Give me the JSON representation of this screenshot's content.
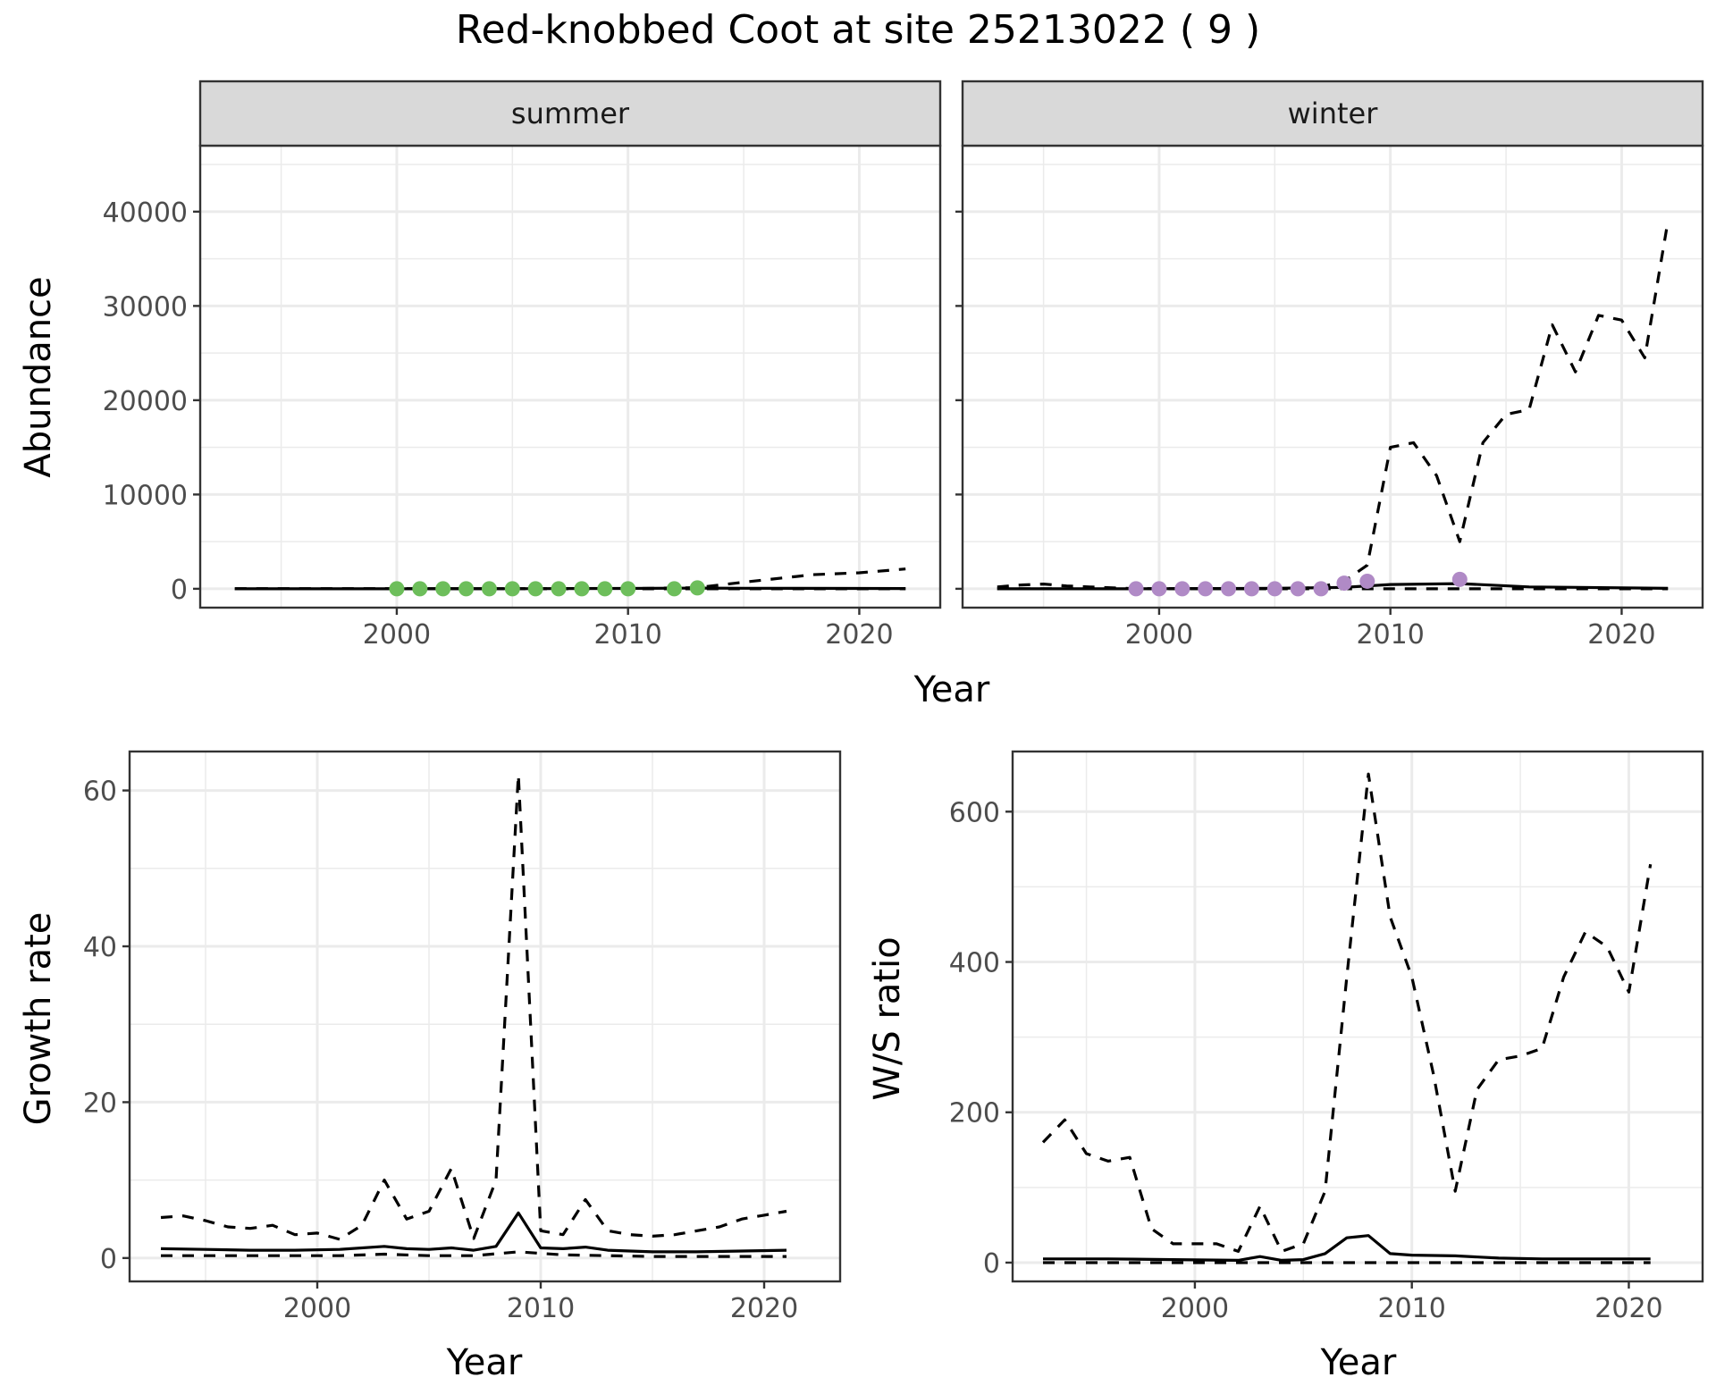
{
  "title": "Red-knobbed Coot at site 25213022 ( 9 )",
  "colors": {
    "summer_points": "#6DBE5B",
    "winter_points": "#B08AC6",
    "strip_bg": "#D9D9D9",
    "grid": "#EBEBEB",
    "line": "#000000"
  },
  "chart_data": [
    {
      "type": "line",
      "facet": "summer",
      "xlabel": "Year",
      "ylabel": "Abundance",
      "xlim": [
        1991.5,
        2023.5
      ],
      "ylim": [
        -2000,
        47000
      ],
      "x_ticks": [
        2000,
        2010,
        2020
      ],
      "y_ticks": [
        0,
        10000,
        20000,
        30000,
        40000
      ],
      "grid": true,
      "series": [
        {
          "style": "solid",
          "x": [
            1993,
            2000,
            2005,
            2010,
            2013,
            2015,
            2020,
            2022
          ],
          "values": [
            0,
            0,
            10,
            40,
            80,
            60,
            40,
            30
          ]
        },
        {
          "style": "dashed",
          "x": [
            1993,
            2000,
            2005,
            2010,
            2013,
            2015,
            2018,
            2020,
            2022
          ],
          "values": [
            0,
            0,
            0,
            20,
            120,
            700,
            1500,
            1700,
            2100
          ]
        },
        {
          "style": "dashed",
          "x": [
            1993,
            2000,
            2010,
            2022
          ],
          "values": [
            0,
            0,
            0,
            0
          ]
        },
        {
          "style": "points",
          "x": [
            2000,
            2001,
            2002,
            2003,
            2004,
            2005,
            2006,
            2007,
            2008,
            2009,
            2010,
            2012,
            2013
          ],
          "values": [
            0,
            0,
            0,
            0,
            0,
            0,
            0,
            0,
            0,
            0,
            0,
            0,
            100
          ]
        }
      ]
    },
    {
      "type": "line",
      "facet": "winter",
      "xlabel": "Year",
      "ylabel": "",
      "xlim": [
        1991.5,
        2023.5
      ],
      "ylim": [
        -2000,
        47000
      ],
      "x_ticks": [
        2000,
        2010,
        2020
      ],
      "y_ticks": [
        0,
        10000,
        20000,
        30000,
        40000
      ],
      "grid": true,
      "series": [
        {
          "style": "solid",
          "x": [
            1993,
            1999,
            2005,
            2008,
            2010,
            2013,
            2016,
            2020,
            2022
          ],
          "values": [
            0,
            0,
            50,
            150,
            450,
            550,
            200,
            100,
            50
          ]
        },
        {
          "style": "dashed",
          "x": [
            1993,
            1994,
            1995,
            1996,
            1997,
            1998,
            1999,
            2000,
            2001,
            2002,
            2003,
            2004,
            2005,
            2006,
            2007,
            2008,
            2009,
            2010,
            2011,
            2012,
            2013,
            2014,
            2015,
            2016,
            2017,
            2018,
            2019,
            2020,
            2021,
            2022
          ],
          "values": [
            200,
            400,
            500,
            300,
            200,
            100,
            0,
            0,
            0,
            0,
            0,
            0,
            0,
            0,
            200,
            800,
            2500,
            15000,
            15500,
            12000,
            5000,
            15500,
            18500,
            19000,
            28000,
            23000,
            29000,
            28500,
            24500,
            39000
          ]
        },
        {
          "style": "dashed",
          "x": [
            1993,
            2000,
            2010,
            2022
          ],
          "values": [
            0,
            0,
            0,
            0
          ]
        },
        {
          "style": "points",
          "x": [
            1999,
            2000,
            2001,
            2002,
            2003,
            2004,
            2005,
            2006,
            2007,
            2008,
            2009,
            2013
          ],
          "values": [
            0,
            0,
            0,
            0,
            0,
            0,
            0,
            0,
            0,
            600,
            800,
            1000
          ]
        }
      ]
    },
    {
      "type": "line",
      "xlabel": "Year",
      "ylabel": "Growth rate",
      "xlim": [
        1991.6,
        2023.4
      ],
      "ylim": [
        -3,
        65
      ],
      "x_ticks": [
        2000,
        2010,
        2020
      ],
      "y_ticks": [
        0,
        20,
        40,
        60
      ],
      "grid": true,
      "series": [
        {
          "style": "solid",
          "x": [
            1993,
            1995,
            1997,
            1999,
            2001,
            2003,
            2004,
            2005,
            2006,
            2007,
            2008,
            2009,
            2010,
            2011,
            2012,
            2013,
            2015,
            2017,
            2019,
            2021
          ],
          "values": [
            1.2,
            1.1,
            1.0,
            1.0,
            1.1,
            1.5,
            1.2,
            1.1,
            1.3,
            1.0,
            1.5,
            5.8,
            1.3,
            1.2,
            1.4,
            1.0,
            0.8,
            0.8,
            0.9,
            1.0
          ]
        },
        {
          "style": "dashed",
          "x": [
            1993,
            1994,
            1995,
            1996,
            1997,
            1998,
            1999,
            2000,
            2001,
            2002,
            2003,
            2004,
            2005,
            2006,
            2007,
            2008,
            2009,
            2010,
            2011,
            2012,
            2013,
            2014,
            2015,
            2016,
            2017,
            2018,
            2019,
            2020,
            2021
          ],
          "values": [
            5.2,
            5.4,
            4.8,
            4.0,
            3.8,
            4.2,
            3.0,
            3.2,
            2.4,
            4.2,
            10.0,
            5.0,
            6.0,
            11.5,
            2.5,
            10.0,
            62.0,
            3.5,
            3.0,
            7.5,
            3.5,
            3.0,
            2.8,
            3.0,
            3.5,
            4.0,
            5.0,
            5.5,
            6.0
          ]
        },
        {
          "style": "dashed",
          "x": [
            1993,
            1997,
            2001,
            2003,
            2005,
            2007,
            2009,
            2011,
            2015,
            2021
          ],
          "values": [
            0.3,
            0.3,
            0.3,
            0.5,
            0.3,
            0.3,
            0.8,
            0.4,
            0.2,
            0.2
          ]
        }
      ]
    },
    {
      "type": "line",
      "xlabel": "Year",
      "ylabel": "W/S ratio",
      "xlim": [
        1991.6,
        2023.4
      ],
      "ylim": [
        -25,
        680
      ],
      "x_ticks": [
        2000,
        2010,
        2020
      ],
      "y_ticks": [
        0,
        200,
        400,
        600
      ],
      "grid": true,
      "series": [
        {
          "style": "solid",
          "x": [
            1993,
            1996,
            1999,
            2002,
            2003,
            2004,
            2005,
            2006,
            2007,
            2008,
            2009,
            2010,
            2012,
            2014,
            2016,
            2018,
            2021
          ],
          "values": [
            5,
            5,
            4,
            3,
            8,
            3,
            4,
            12,
            33,
            36,
            12,
            10,
            9,
            6,
            5,
            5,
            5
          ]
        },
        {
          "style": "dashed",
          "x": [
            1993,
            1994,
            1995,
            1996,
            1997,
            1998,
            1999,
            2000,
            2001,
            2002,
            2003,
            2004,
            2005,
            2006,
            2007,
            2008,
            2009,
            2010,
            2011,
            2012,
            2013,
            2014,
            2015,
            2016,
            2017,
            2018,
            2019,
            2020,
            2021
          ],
          "values": [
            160,
            190,
            145,
            135,
            140,
            45,
            25,
            25,
            25,
            15,
            75,
            15,
            25,
            95,
            380,
            650,
            460,
            380,
            250,
            95,
            230,
            270,
            275,
            285,
            380,
            440,
            420,
            360,
            530
          ]
        },
        {
          "style": "dashed",
          "x": [
            1993,
            2000,
            2005,
            2010,
            2015,
            2021
          ],
          "values": [
            0,
            0,
            0,
            0,
            0,
            0
          ]
        }
      ]
    }
  ]
}
